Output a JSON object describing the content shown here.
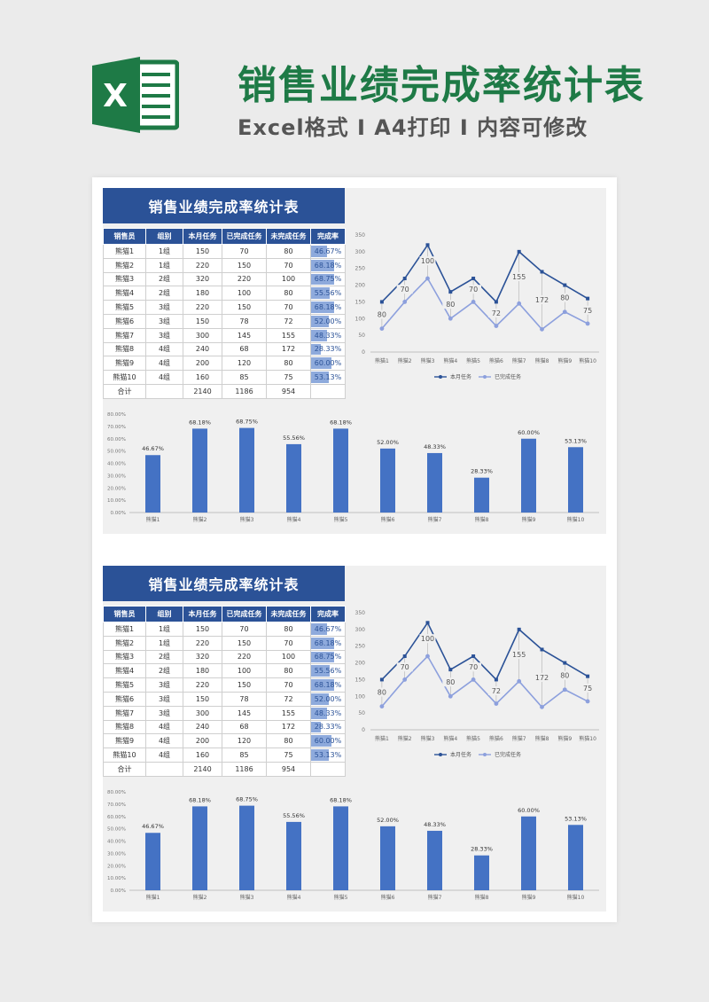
{
  "header": {
    "logo_letter": "X",
    "title": "销售业绩完成率统计表",
    "subtitle": "Excel格式 I A4打印 I 内容可修改"
  },
  "colors": {
    "title_green": "#1e7a46",
    "navy": "#2b5297",
    "bar_blue": "#4472c4",
    "line_light": "#8da0dd",
    "rate_fill": "#8eaadc"
  },
  "sheet": {
    "block_title": "销售业绩完成率统计表",
    "table": {
      "headers": [
        "销售员",
        "组别",
        "本月任务",
        "已完成任务",
        "未完成任务",
        "完成率"
      ],
      "rows": [
        [
          "熊猫1",
          "1组",
          "150",
          "70",
          "80",
          "46.67%"
        ],
        [
          "熊猫2",
          "1组",
          "220",
          "150",
          "70",
          "68.18%"
        ],
        [
          "熊猫3",
          "2组",
          "320",
          "220",
          "100",
          "68.75%"
        ],
        [
          "熊猫4",
          "2组",
          "180",
          "100",
          "80",
          "55.56%"
        ],
        [
          "熊猫5",
          "3组",
          "220",
          "150",
          "70",
          "68.18%"
        ],
        [
          "熊猫6",
          "3组",
          "150",
          "78",
          "72",
          "52.00%"
        ],
        [
          "熊猫7",
          "3组",
          "300",
          "145",
          "155",
          "48.33%"
        ],
        [
          "熊猫8",
          "4组",
          "240",
          "68",
          "172",
          "28.33%"
        ],
        [
          "熊猫9",
          "4组",
          "200",
          "120",
          "80",
          "60.00%"
        ],
        [
          "熊猫10",
          "4组",
          "160",
          "85",
          "75",
          "53.13%"
        ]
      ],
      "rates": [
        46.67,
        68.18,
        68.75,
        55.56,
        68.18,
        52.0,
        48.33,
        28.33,
        60.0,
        53.13
      ],
      "total": [
        "合计",
        "",
        "2140",
        "1186",
        "954",
        ""
      ]
    }
  },
  "chart_data": [
    {
      "type": "line",
      "categories": [
        "熊猫1",
        "熊猫2",
        "熊猫3",
        "熊猫4",
        "熊猫5",
        "熊猫6",
        "熊猫7",
        "熊猫8",
        "熊猫9",
        "熊猫10"
      ],
      "series": [
        {
          "name": "本月任务",
          "values": [
            150,
            220,
            320,
            180,
            220,
            150,
            300,
            240,
            200,
            160
          ]
        },
        {
          "name": "已完成任务",
          "values": [
            70,
            150,
            220,
            100,
            150,
            78,
            145,
            68,
            120,
            85
          ]
        }
      ],
      "data_labels": [
        "80",
        "70",
        "100",
        "80",
        "70",
        "72",
        "155",
        "172",
        "80",
        "75"
      ],
      "y_ticks": [
        "0",
        "50",
        "100",
        "150",
        "200",
        "250",
        "300",
        "350"
      ],
      "ylim": [
        0,
        350
      ],
      "legend": "bottom"
    },
    {
      "type": "bar",
      "categories": [
        "熊猫1",
        "熊猫2",
        "熊猫3",
        "熊猫4",
        "熊猫5",
        "熊猫6",
        "熊猫7",
        "熊猫8",
        "熊猫9",
        "熊猫10"
      ],
      "values": [
        46.67,
        68.18,
        68.75,
        55.56,
        68.18,
        52.0,
        48.33,
        28.33,
        60.0,
        53.13
      ],
      "value_labels": [
        "46.67%",
        "68.18%",
        "68.75%",
        "55.56%",
        "68.18%",
        "52.00%",
        "48.33%",
        "28.33%",
        "60.00%",
        "53.13%"
      ],
      "y_ticks": [
        "0.00%",
        "10.00%",
        "20.00%",
        "30.00%",
        "40.00%",
        "50.00%",
        "60.00%",
        "70.00%",
        "80.00%"
      ],
      "ylim": [
        0,
        80
      ]
    }
  ]
}
